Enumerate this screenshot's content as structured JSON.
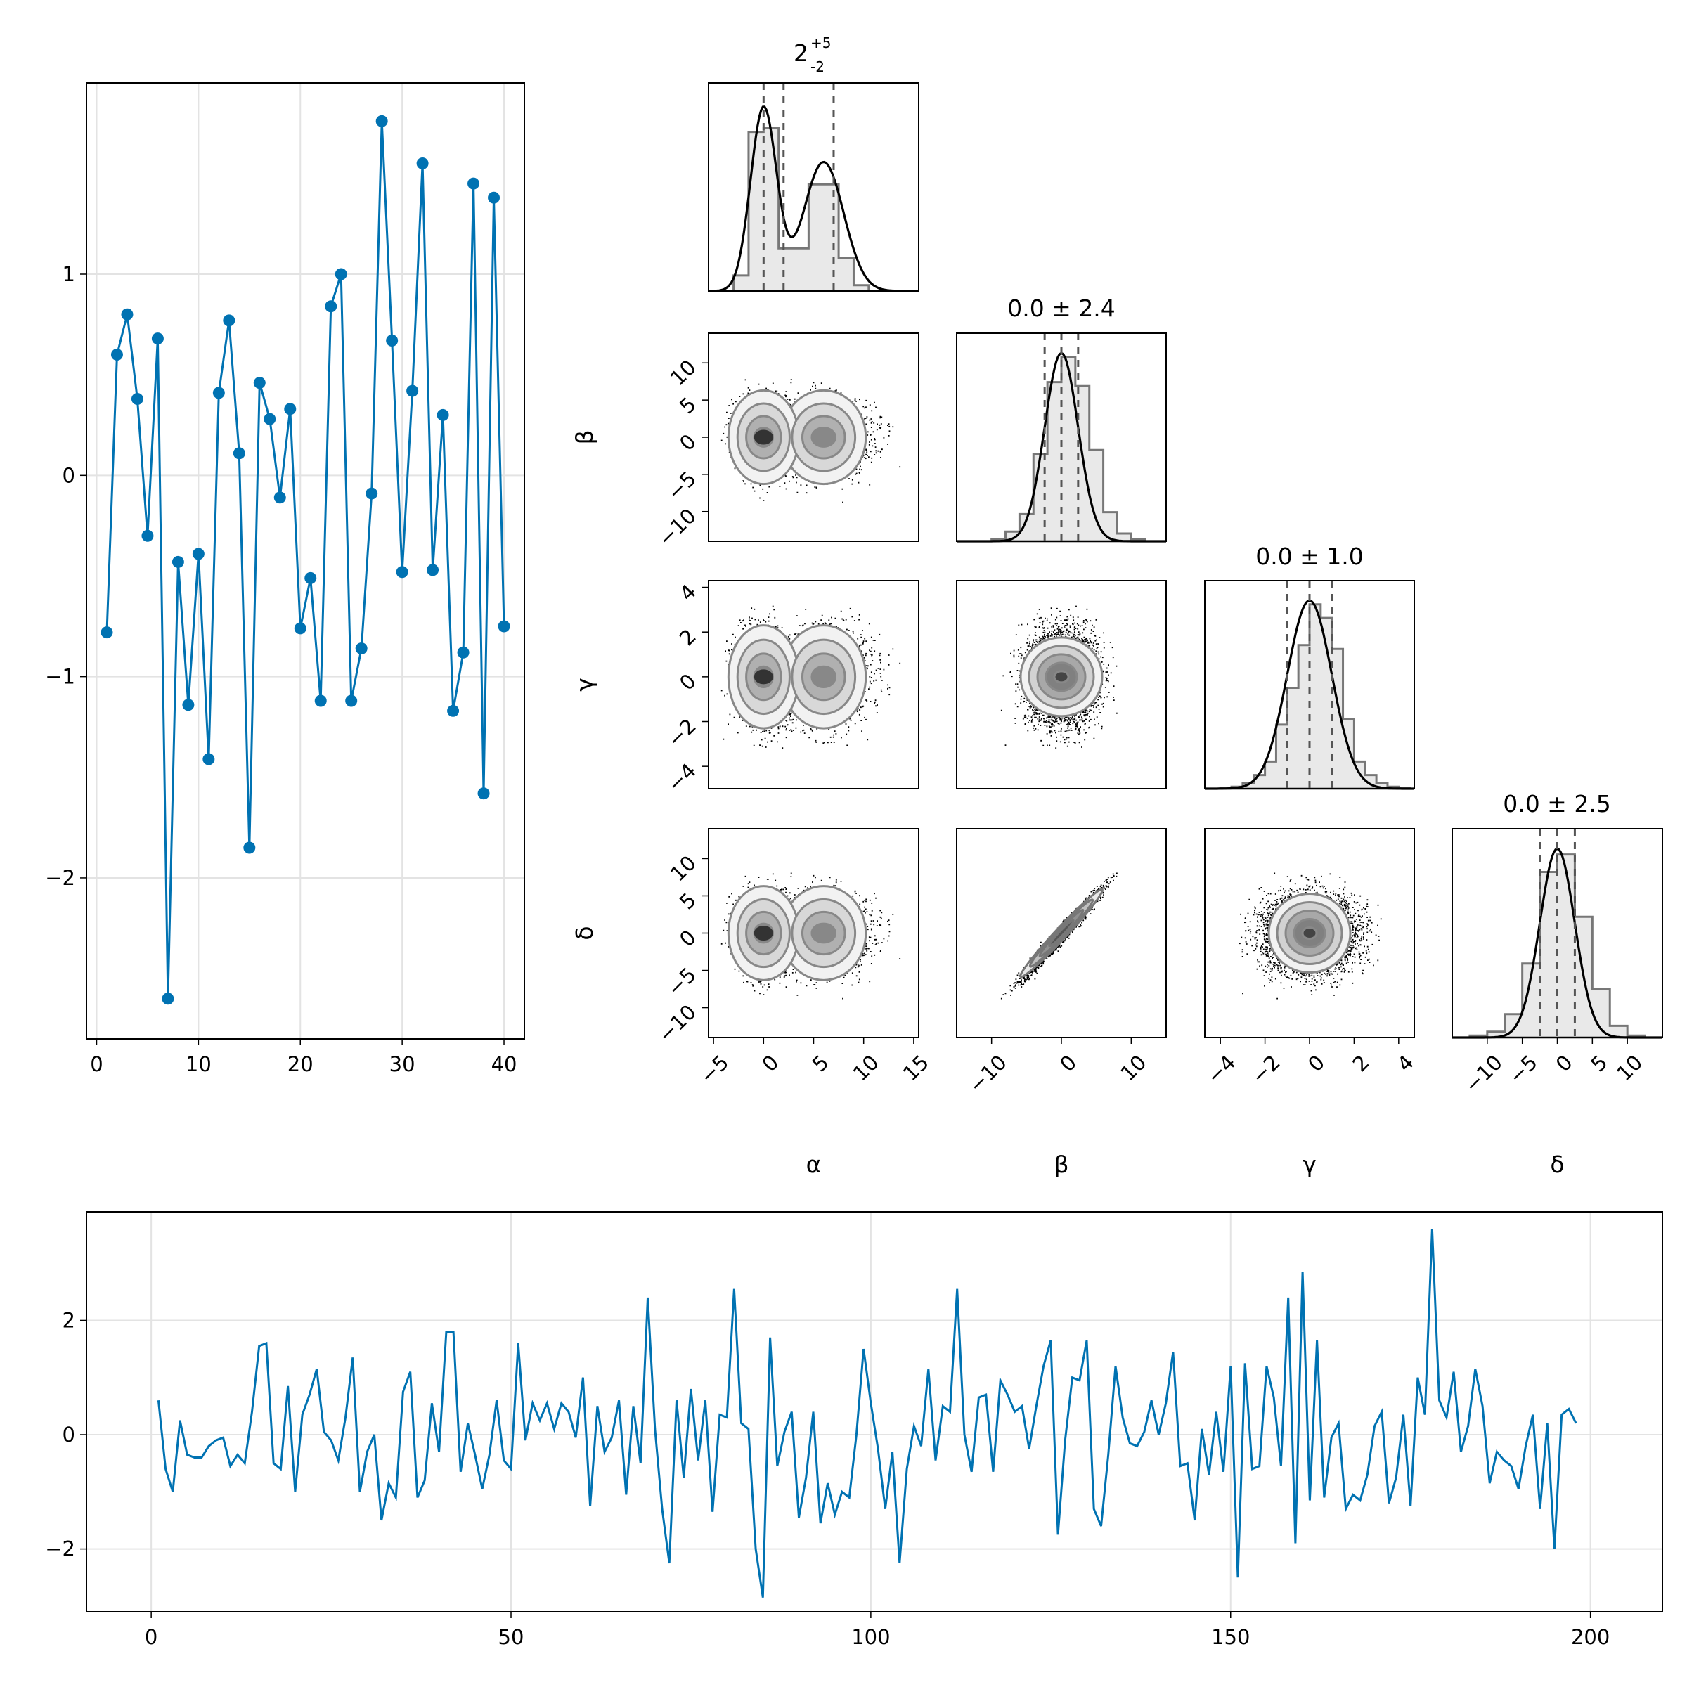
{
  "chart_data": [
    {
      "type": "line",
      "panel": "scatter-line",
      "markers": true,
      "color": "#0072B2",
      "grid": true,
      "xlim": [
        -1,
        42
      ],
      "ylim": [
        -2.8,
        1.95
      ],
      "xticks": [
        0,
        10,
        20,
        30,
        40
      ],
      "xtick_labels": [
        "0",
        "10",
        "20",
        "30",
        "40"
      ],
      "yticks": [
        -2,
        -1,
        0,
        1
      ],
      "ytick_labels": [
        "−2",
        "−1",
        "0",
        "1"
      ],
      "x": [
        1,
        2,
        3,
        4,
        5,
        6,
        7,
        8,
        9,
        10,
        11,
        12,
        13,
        14,
        15,
        16,
        17,
        18,
        19,
        20,
        21,
        22,
        23,
        24,
        25,
        26,
        27,
        28,
        29,
        30,
        31,
        32,
        33,
        34,
        35,
        36,
        37,
        38,
        39,
        40
      ],
      "values": [
        -0.78,
        0.6,
        0.8,
        0.38,
        -0.3,
        0.68,
        -2.6,
        -0.43,
        -1.14,
        -0.39,
        -1.41,
        0.41,
        0.77,
        0.11,
        -1.85,
        0.46,
        0.28,
        -0.11,
        0.33,
        -0.76,
        -0.51,
        -1.12,
        0.84,
        1.0,
        -1.12,
        -0.86,
        -0.09,
        1.76,
        0.67,
        -0.48,
        0.42,
        1.55,
        -0.47,
        0.3,
        -1.17,
        -0.88,
        1.45,
        -1.58,
        1.38,
        -0.75
      ]
    },
    {
      "type": "corner",
      "panel": "corner-plot",
      "parameters": [
        "α",
        "β",
        "γ",
        "δ"
      ],
      "titles": [
        {
          "base": "2",
          "sup": "+5",
          "sub": "-2"
        },
        {
          "text": "0.0 ± 2.4"
        },
        {
          "text": "0.0 ± 1.0"
        },
        {
          "text": "0.0 ± 2.5"
        }
      ],
      "ranges": [
        [
          -5.5,
          15.5
        ],
        [
          -15,
          15
        ],
        [
          -4.7,
          4.7
        ],
        [
          -15,
          15
        ]
      ],
      "ticks": [
        [
          -5,
          0,
          5,
          10,
          15
        ],
        [
          -10,
          0,
          10
        ],
        [
          -4,
          -2,
          0,
          2,
          4
        ],
        [
          -10,
          -5,
          0,
          5,
          10
        ]
      ],
      "tick_labels": [
        [
          "−5",
          "0",
          "5",
          "10",
          "15"
        ],
        [
          "−10",
          "0",
          "10"
        ],
        [
          "−4",
          "−2",
          "0",
          "2",
          "4"
        ],
        [
          "−10",
          "−5",
          "0",
          "5",
          "10"
        ]
      ],
      "row_ticks": {
        "β": {
          "values": [
            -10,
            -5,
            0,
            5,
            10
          ],
          "labels": [
            "−10",
            "−5",
            "0",
            "5",
            "10"
          ],
          "range": [
            -14,
            14
          ]
        },
        "γ": {
          "values": [
            -4,
            -2,
            0,
            2,
            4
          ],
          "labels": [
            "−4",
            "−2",
            "0",
            "2",
            "4"
          ],
          "range": [
            -5,
            4.3
          ]
        },
        "δ": {
          "values": [
            -10,
            -5,
            0,
            5,
            10
          ],
          "labels": [
            "−10",
            "−5",
            "0",
            "5",
            "10"
          ],
          "range": [
            -14,
            14
          ]
        }
      },
      "quantile_lines": [
        [
          0,
          2,
          7
        ],
        [
          -2.4,
          0,
          2.4
        ],
        [
          -1.0,
          0,
          1.0
        ],
        [
          -2.5,
          0,
          2.5
        ]
      ],
      "histograms": [
        {
          "bins": [
            -3,
            -1.5,
            0,
            1.5,
            3,
            4.5,
            6,
            7.5,
            9,
            10.5,
            12
          ],
          "heights": [
            0.08,
            0.82,
            0.84,
            0.22,
            0.22,
            0.55,
            0.55,
            0.17,
            0.03,
            0.0
          ]
        },
        {
          "bins": [
            -12,
            -10,
            -8,
            -6,
            -4,
            -2,
            0,
            2,
            4,
            6,
            8,
            10,
            12
          ],
          "heights": [
            0.0,
            0.01,
            0.05,
            0.14,
            0.45,
            0.82,
            0.95,
            0.8,
            0.47,
            0.15,
            0.04,
            0.01
          ]
        },
        {
          "bins": [
            -4.5,
            -4,
            -3.5,
            -3,
            -2.5,
            -2,
            -1.5,
            -1,
            -0.5,
            0,
            0.5,
            1,
            1.5,
            2,
            2.5,
            3,
            3.5,
            4,
            4.5
          ],
          "heights": [
            0,
            0.002,
            0.01,
            0.03,
            0.07,
            0.14,
            0.33,
            0.52,
            0.74,
            0.95,
            0.88,
            0.72,
            0.36,
            0.14,
            0.07,
            0.03,
            0.01,
            0.002
          ]
        },
        {
          "bins": [
            -15,
            -12.5,
            -10,
            -7.5,
            -5,
            -2.5,
            0,
            2.5,
            5,
            7.5,
            10,
            12.5,
            15
          ],
          "heights": [
            0.0,
            0.01,
            0.03,
            0.12,
            0.38,
            0.85,
            0.94,
            0.62,
            0.25,
            0.06,
            0.01,
            0.0
          ]
        }
      ],
      "mixture": {
        "alpha_modes": [
          0,
          6
        ],
        "alpha_sd": [
          1.3,
          2.0
        ],
        "alpha_weights": [
          0.48,
          0.52
        ],
        "sd": [
          null,
          2.4,
          1.0,
          2.5
        ],
        "corr_beta_delta": 0.98
      }
    },
    {
      "type": "line",
      "panel": "time-series",
      "markers": false,
      "color": "#0072B2",
      "grid": true,
      "xlim": [
        -9,
        210
      ],
      "ylim": [
        -3.1,
        3.9
      ],
      "xticks": [
        0,
        50,
        100,
        150,
        200
      ],
      "xtick_labels": [
        "0",
        "50",
        "100",
        "150",
        "200"
      ],
      "yticks": [
        -2,
        0,
        2
      ],
      "ytick_labels": [
        "−2",
        "0",
        "2"
      ],
      "x_start": 1,
      "values": [
        0.6,
        -0.6,
        -1.0,
        0.25,
        -0.35,
        -0.4,
        -0.4,
        -0.2,
        -0.1,
        -0.05,
        -0.55,
        -0.35,
        -0.5,
        0.4,
        1.55,
        1.6,
        -0.5,
        -0.6,
        0.85,
        -1.0,
        0.35,
        0.7,
        1.15,
        0.05,
        -0.1,
        -0.45,
        0.3,
        1.35,
        -1.0,
        -0.3,
        0.0,
        -1.5,
        -0.85,
        -1.1,
        0.75,
        1.1,
        -1.1,
        -0.8,
        0.55,
        -0.3,
        1.8,
        1.8,
        -0.65,
        0.2,
        -0.35,
        -0.95,
        -0.35,
        0.6,
        -0.45,
        -0.6,
        1.6,
        -0.1,
        0.55,
        0.25,
        0.55,
        0.1,
        0.55,
        0.4,
        -0.05,
        1.0,
        -1.25,
        0.5,
        -0.3,
        -0.05,
        0.6,
        -1.05,
        0.5,
        -0.5,
        2.4,
        0.1,
        -1.3,
        -2.25,
        0.6,
        -0.75,
        0.8,
        -0.45,
        0.6,
        -1.35,
        0.35,
        0.3,
        2.55,
        0.2,
        0.1,
        -2.0,
        -2.85,
        1.7,
        -0.55,
        0.05,
        0.4,
        -1.45,
        -0.75,
        0.4,
        -1.55,
        -0.85,
        -1.4,
        -1.0,
        -1.1,
        0.0,
        1.5,
        0.55,
        -0.25,
        -1.3,
        -0.3,
        -2.25,
        -0.6,
        0.15,
        -0.2,
        1.15,
        -0.45,
        0.5,
        0.4,
        2.55,
        0.0,
        -0.65,
        0.65,
        0.7,
        -0.65,
        0.95,
        0.7,
        0.4,
        0.5,
        -0.25,
        0.5,
        1.2,
        1.65,
        -1.75,
        -0.1,
        1.0,
        0.95,
        1.65,
        -1.3,
        -1.6,
        -0.35,
        1.2,
        0.3,
        -0.15,
        -0.2,
        0.05,
        0.6,
        0.0,
        0.55,
        1.45,
        -0.55,
        -0.5,
        -1.5,
        0.1,
        -0.7,
        0.4,
        -0.65,
        1.2,
        -2.5,
        1.25,
        -0.6,
        -0.55,
        1.2,
        0.65,
        -0.55,
        2.4,
        -1.9,
        2.85,
        -1.15,
        1.65,
        -1.1,
        -0.05,
        0.2,
        -1.3,
        -1.05,
        -1.15,
        -0.7,
        0.15,
        0.4,
        -1.2,
        -0.75,
        0.35,
        -1.25,
        1.0,
        0.35,
        3.6,
        0.6,
        0.3,
        1.1,
        -0.3,
        0.15,
        1.15,
        0.5,
        -0.85,
        -0.3,
        -0.45,
        -0.55,
        -0.95,
        -0.2,
        0.35,
        -1.3,
        0.2,
        -2.0,
        0.35,
        0.45,
        0.2
      ]
    }
  ]
}
